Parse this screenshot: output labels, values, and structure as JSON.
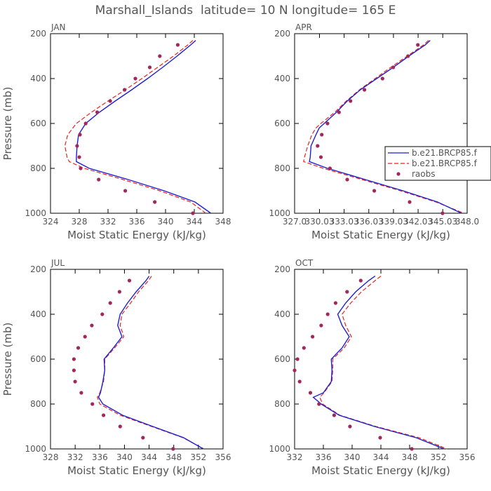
{
  "figure_title": "Marshall_Islands  latitude= 10 N longitude= 165 E",
  "colors": {
    "model1": "#1f1fd0",
    "model2": "#e8231f",
    "raobs": "#a0285a",
    "text": "#555555"
  },
  "legend": {
    "entries": [
      {
        "label": "b.e21.BRCP85.f",
        "style": "solid",
        "color": "#1f1fd0"
      },
      {
        "label": "b.e21.BRCP85.f",
        "style": "dashed",
        "color": "#e8231f"
      },
      {
        "label": "raobs",
        "style": "marker",
        "color": "#a0285a"
      }
    ]
  },
  "chart_data": [
    {
      "type": "line",
      "panel": "JAN",
      "xlabel": "Moist Static Energy (kJ/kg)",
      "ylabel": "Pressure (mb)",
      "xlim": [
        324,
        348
      ],
      "xticks": [
        324,
        328,
        332,
        336,
        340,
        344,
        348
      ],
      "xtick_labels": [
        "324",
        "328",
        "332",
        "336",
        "340",
        "344",
        "348"
      ],
      "ylim": [
        1000,
        200
      ],
      "yticks": [
        200,
        400,
        600,
        800,
        1000
      ],
      "ytick_labels": [
        "200",
        "400",
        "600",
        "800",
        "1000"
      ],
      "series": [
        {
          "name": "b.e21.BRCP85.f (solid)",
          "pressure": [
            230,
            250,
            300,
            350,
            400,
            450,
            500,
            550,
            600,
            650,
            700,
            750,
            770,
            800,
            850,
            900,
            950,
            1000
          ],
          "values": [
            344.2,
            343.5,
            341.6,
            339.6,
            337.5,
            335.3,
            333.0,
            330.8,
            328.9,
            327.9,
            327.7,
            327.6,
            327.6,
            329.4,
            334.8,
            339.8,
            344.1,
            346.3
          ]
        },
        {
          "name": "b.e21.BRCP85.f (dashed)",
          "pressure": [
            230,
            250,
            300,
            350,
            400,
            450,
            500,
            550,
            600,
            650,
            700,
            750,
            770,
            800,
            850,
            900,
            950,
            1000
          ],
          "values": [
            343.8,
            343.1,
            341.1,
            338.9,
            336.7,
            334.4,
            332.0,
            329.7,
            327.6,
            326.4,
            326.0,
            326.3,
            326.6,
            328.7,
            334.1,
            339.2,
            343.5,
            345.6
          ]
        },
        {
          "name": "raobs",
          "pressure": [
            250,
            300,
            350,
            400,
            450,
            500,
            550,
            600,
            650,
            700,
            750,
            800,
            850,
            900,
            950,
            1000
          ],
          "values": [
            341.7,
            339.2,
            337.8,
            335.8,
            334.3,
            332.3,
            330.5,
            328.9,
            328.1,
            327.7,
            328.0,
            328.2,
            330.7,
            334.4,
            338.5,
            343.8
          ]
        }
      ]
    },
    {
      "type": "line",
      "panel": "APR",
      "xlabel": "Moist Static Energy (kJ/kg)",
      "ylabel": "Pressure (mb)",
      "xlim": [
        327.0,
        348.0
      ],
      "xticks": [
        327.0,
        330.03,
        333.03,
        336.03,
        339.03,
        342.03,
        345.03,
        348.0
      ],
      "xtick_labels": [
        "327.0",
        "330.03",
        "333.03",
        "336.03",
        "339.03",
        "342.03",
        "345.03",
        "348.0"
      ],
      "ylim": [
        1000,
        200
      ],
      "yticks": [
        200,
        400,
        600,
        800,
        1000
      ],
      "ytick_labels": [
        "200",
        "400",
        "600",
        "800",
        "1000"
      ],
      "series": [
        {
          "name": "b.e21.BRCP85.f (solid)",
          "pressure": [
            230,
            250,
            300,
            350,
            400,
            450,
            500,
            550,
            600,
            620,
            650,
            700,
            750,
            770,
            800,
            850,
            900,
            950,
            1000
          ],
          "values": [
            343.5,
            342.9,
            340.9,
            339.0,
            337.0,
            335.0,
            333.4,
            332.1,
            330.6,
            330.0,
            329.6,
            329.0,
            328.9,
            328.8,
            331.0,
            335.6,
            340.2,
            344.4,
            347.3
          ]
        },
        {
          "name": "b.e21.BRCP85.f (dashed)",
          "pressure": [
            230,
            250,
            300,
            350,
            400,
            450,
            500,
            550,
            600,
            620,
            650,
            700,
            750,
            770,
            800,
            850,
            900,
            950,
            1000
          ],
          "values": [
            343.3,
            342.7,
            340.7,
            338.7,
            336.8,
            334.9,
            333.3,
            331.9,
            330.2,
            329.6,
            329.1,
            328.6,
            328.2,
            328.1,
            330.5,
            335.2,
            339.9,
            344.2,
            347.6
          ]
        },
        {
          "name": "raobs",
          "pressure": [
            250,
            300,
            350,
            400,
            450,
            500,
            550,
            600,
            650,
            700,
            750,
            800,
            850,
            900,
            950,
            1000
          ],
          "values": [
            342.0,
            340.8,
            339.0,
            337.7,
            335.5,
            333.8,
            332.4,
            331.0,
            330.3,
            329.8,
            330.2,
            331.3,
            333.4,
            336.7,
            341.0,
            345.0
          ]
        }
      ]
    },
    {
      "type": "line",
      "panel": "JUL",
      "xlabel": "Moist Static Energy (kJ/kg)",
      "ylabel": "Pressure (mb)",
      "xlim": [
        328,
        356
      ],
      "xticks": [
        328,
        332,
        336,
        340,
        344,
        348,
        352,
        356
      ],
      "xtick_labels": [
        "328",
        "332",
        "336",
        "340",
        "344",
        "348",
        "352",
        "356"
      ],
      "ylim": [
        1000,
        200
      ],
      "yticks": [
        200,
        400,
        600,
        800,
        1000
      ],
      "ytick_labels": [
        "200",
        "400",
        "600",
        "800",
        "1000"
      ],
      "series": [
        {
          "name": "b.e21.BRCP85.f (solid)",
          "pressure": [
            230,
            250,
            300,
            350,
            400,
            450,
            500,
            550,
            600,
            650,
            700,
            750,
            770,
            800,
            850,
            900,
            950,
            1000
          ],
          "values": [
            344.0,
            343.5,
            341.9,
            340.5,
            339.3,
            338.9,
            339.6,
            338.2,
            336.7,
            336.8,
            336.5,
            336.1,
            335.8,
            336.5,
            339.7,
            344.6,
            349.6,
            352.8
          ]
        },
        {
          "name": "b.e21.BRCP85.f (dashed)",
          "pressure": [
            230,
            250,
            300,
            350,
            400,
            450,
            500,
            550,
            600,
            650,
            700,
            750,
            770,
            800,
            850,
            900,
            950,
            1000
          ],
          "values": [
            344.4,
            343.9,
            342.3,
            341.0,
            339.6,
            339.3,
            339.9,
            338.4,
            336.8,
            336.8,
            336.6,
            336.0,
            335.6,
            336.0,
            339.3,
            344.4,
            349.5,
            352.9
          ]
        },
        {
          "name": "raobs",
          "pressure": [
            250,
            300,
            350,
            400,
            450,
            500,
            550,
            600,
            650,
            700,
            750,
            800,
            850,
            900,
            950,
            1000
          ],
          "values": [
            340.8,
            339.2,
            337.7,
            336.4,
            334.7,
            333.6,
            332.5,
            331.8,
            331.8,
            332.0,
            333.0,
            334.8,
            336.6,
            339.3,
            343.0,
            347.9
          ]
        }
      ]
    },
    {
      "type": "line",
      "panel": "OCT",
      "xlabel": "Moist Static Energy (kJ/kg)",
      "ylabel": "Pressure (mb)",
      "xlim": [
        332,
        356
      ],
      "xticks": [
        332,
        336,
        340,
        344,
        348,
        352,
        356
      ],
      "xtick_labels": [
        "332",
        "336",
        "340",
        "344",
        "348",
        "352",
        "356"
      ],
      "ylim": [
        1000,
        200
      ],
      "yticks": [
        200,
        400,
        600,
        800,
        1000
      ],
      "ytick_labels": [
        "200",
        "400",
        "600",
        "800",
        "1000"
      ],
      "series": [
        {
          "name": "b.e21.BRCP85.f (solid)",
          "pressure": [
            230,
            250,
            300,
            350,
            400,
            450,
            500,
            550,
            600,
            650,
            700,
            750,
            770,
            800,
            850,
            900,
            950,
            1000
          ],
          "values": [
            343.2,
            342.3,
            340.5,
            339.1,
            338.0,
            338.6,
            339.6,
            338.6,
            337.1,
            337.2,
            337.1,
            336.0,
            334.6,
            335.7,
            338.2,
            343.1,
            348.9,
            352.8
          ]
        },
        {
          "name": "b.e21.BRCP85.f (dashed)",
          "pressure": [
            230,
            250,
            300,
            350,
            400,
            450,
            500,
            550,
            600,
            650,
            700,
            750,
            770,
            800,
            850,
            900,
            950,
            1000
          ],
          "values": [
            344.0,
            343.2,
            341.3,
            339.8,
            338.6,
            339.1,
            339.9,
            338.9,
            337.3,
            337.3,
            337.2,
            336.1,
            335.5,
            335.9,
            338.3,
            343.3,
            349.3,
            353.2
          ]
        },
        {
          "name": "raobs",
          "pressure": [
            250,
            300,
            350,
            400,
            450,
            500,
            550,
            600,
            650,
            700,
            750,
            800,
            850,
            900,
            950,
            1000
          ],
          "values": [
            341.2,
            339.3,
            337.7,
            336.6,
            335.7,
            334.5,
            333.3,
            332.4,
            332.0,
            332.7,
            334.2,
            335.4,
            337.5,
            339.7,
            343.9,
            348.3
          ]
        }
      ]
    }
  ]
}
